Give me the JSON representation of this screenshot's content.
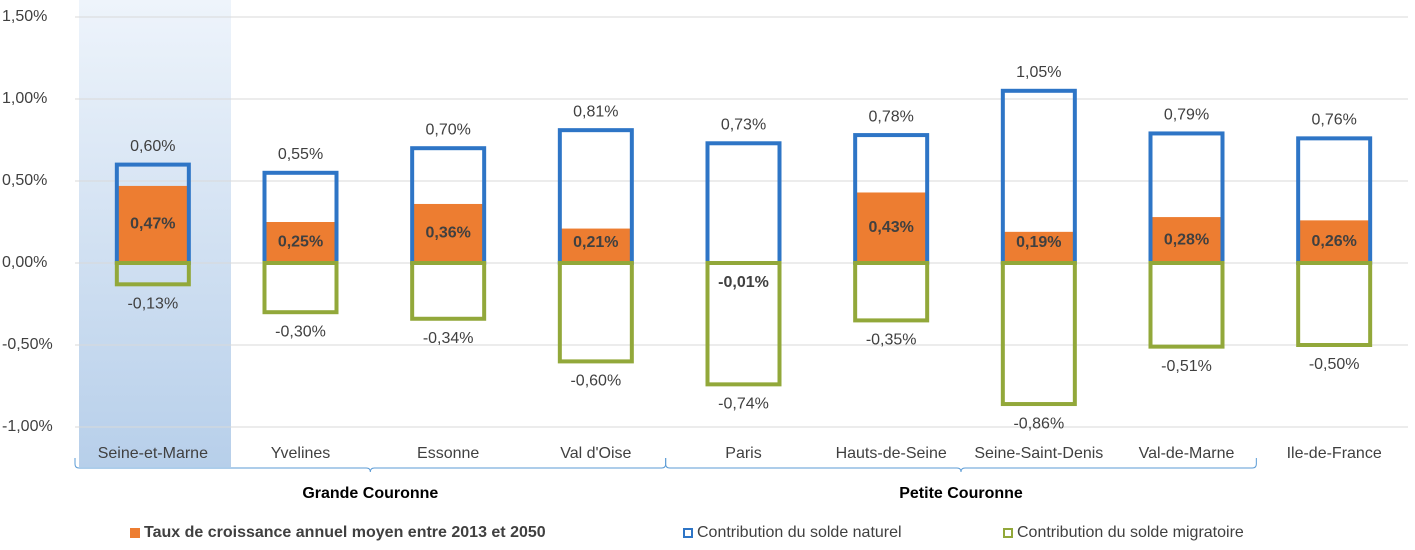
{
  "chart_data": {
    "type": "bar",
    "categories": [
      "Seine-et-Marne",
      "Yvelines",
      "Essonne",
      "Val d'Oise",
      "Paris",
      "Hauts-de-Seine",
      "Seine-Saint-Denis",
      "Val-de-Marne",
      "Ile-de-France"
    ],
    "groups": [
      "Grande Couronne",
      "Petite Couronne"
    ],
    "ylim": [
      -1.0,
      1.5
    ],
    "yticks": [
      {
        "value": -1.0,
        "label": "-1,00%"
      },
      {
        "value": -0.5,
        "label": "-0,50%"
      },
      {
        "value": 0,
        "label": "0,00%"
      },
      {
        "value": 0.5,
        "label": "0,50%"
      },
      {
        "value": 1.0,
        "label": "1,00%"
      },
      {
        "value": 1.5,
        "label": "1,50%"
      }
    ],
    "series": [
      {
        "name": "Taux de croissance annuel moyen entre 2013 et 2050",
        "color": "#ed7d31",
        "style": "fill",
        "values": [
          0.47,
          0.25,
          0.36,
          0.21,
          -0.01,
          0.43,
          0.19,
          0.28,
          0.26
        ],
        "value_labels": [
          "0,47%",
          "0,25%",
          "0,36%",
          "0,21%",
          "-0,01%",
          "0,43%",
          "0,19%",
          "0,28%",
          "0,26%"
        ]
      },
      {
        "name": "Contribution du solde naturel",
        "color": "#2e75c6",
        "style": "outline",
        "values": [
          0.6,
          0.55,
          0.7,
          0.81,
          0.73,
          0.78,
          1.05,
          0.79,
          0.76
        ],
        "value_labels": [
          "0,60%",
          "0,55%",
          "0,70%",
          "0,81%",
          "0,73%",
          "0,78%",
          "1,05%",
          "0,79%",
          "0,76%"
        ]
      },
      {
        "name": "Contribution du solde migratoire",
        "color": "#92a83a",
        "style": "outline",
        "values": [
          -0.13,
          -0.3,
          -0.34,
          -0.6,
          -0.74,
          -0.35,
          -0.86,
          -0.51,
          -0.5
        ],
        "value_labels": [
          "-0,13%",
          "-0,30%",
          "-0,34%",
          "-0,60%",
          "-0,74%",
          "-0,35%",
          "-0,86%",
          "-0,51%",
          "-0,50%"
        ]
      }
    ]
  }
}
